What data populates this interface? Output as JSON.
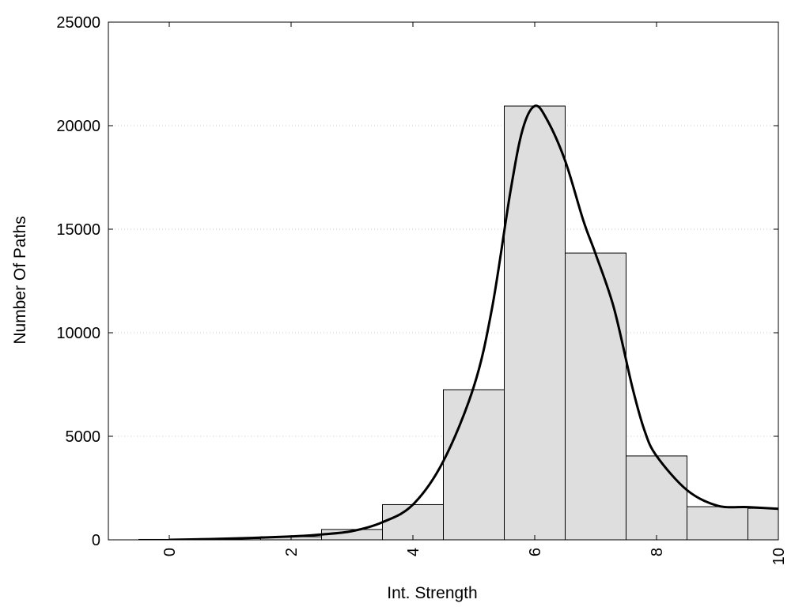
{
  "chart_data": {
    "type": "bar",
    "title": "",
    "xlabel": "Int. Strength",
    "ylabel": "Number Of Paths",
    "xlim": [
      -1,
      10
    ],
    "ylim": [
      0,
      25000
    ],
    "x_ticks": [
      0,
      2,
      4,
      6,
      8,
      10
    ],
    "y_ticks": [
      0,
      5000,
      10000,
      15000,
      20000,
      25000
    ],
    "grid": "horizontal dotted",
    "bars": {
      "x": [
        0,
        1,
        2,
        3,
        4,
        5,
        6,
        7,
        8,
        9,
        10
      ],
      "values": [
        20,
        60,
        150,
        500,
        1700,
        7250,
        20950,
        13850,
        4050,
        1600,
        1520
      ],
      "bin_width": 1,
      "fill": "#dedede",
      "edge": "#000000"
    },
    "curve": {
      "x": [
        0,
        1,
        2,
        2.5,
        3,
        3.5,
        4,
        4.5,
        5,
        5.3,
        5.6,
        5.8,
        6,
        6.2,
        6.5,
        6.8,
        7,
        7.3,
        7.6,
        7.8,
        8,
        8.5,
        9,
        9.5,
        10
      ],
      "values": [
        0,
        60,
        160,
        260,
        420,
        850,
        1700,
        3800,
        7400,
        11200,
        16800,
        19800,
        20950,
        20300,
        18300,
        15400,
        13800,
        11200,
        7400,
        5300,
        4050,
        2400,
        1650,
        1580,
        1500
      ],
      "color": "#000000"
    }
  }
}
